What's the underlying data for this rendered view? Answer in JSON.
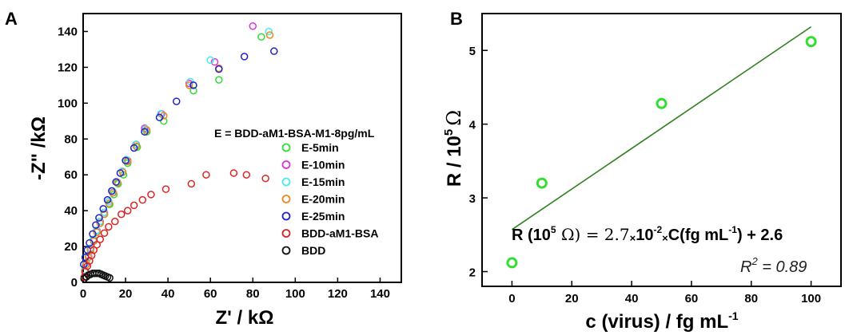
{
  "chart_data": [
    {
      "panel": "A",
      "type": "scatter",
      "xlabel": "Z' / kΩ",
      "ylabel": "-Z\" /kΩ",
      "xlim": [
        0,
        150
      ],
      "ylim": [
        0,
        150
      ],
      "xticks": [
        0,
        20,
        40,
        60,
        80,
        100,
        120,
        140
      ],
      "yticks": [
        0,
        20,
        40,
        60,
        80,
        100,
        120,
        140
      ],
      "legend_title": "E = BDD-aM1-BSA-M1-8pg/mL",
      "legend_position": "right-middle",
      "marker": "open-circle",
      "series": [
        {
          "name": "E-5min",
          "color": "#33dd33",
          "x": [
            0.8,
            1.5,
            2.5,
            3.5,
            5,
            6.5,
            8,
            10,
            12.5,
            14.5,
            16.5,
            19,
            21,
            25.5,
            30,
            38,
            52,
            64,
            84
          ],
          "y": [
            6,
            10,
            14,
            18,
            23,
            28,
            33,
            38,
            43.5,
            49,
            55,
            60,
            66.5,
            75.5,
            84,
            90,
            107,
            113,
            137
          ]
        },
        {
          "name": "E-10min",
          "color": "#dd33dd",
          "x": [
            0.8,
            1.5,
            2.5,
            3.5,
            5,
            6.5,
            8,
            10,
            12,
            14,
            16,
            18.5,
            21,
            25,
            29,
            37,
            50,
            62,
            80
          ],
          "y": [
            7,
            11,
            15,
            19,
            24,
            29,
            34,
            39,
            45,
            50,
            56,
            62,
            68,
            77,
            86,
            94,
            111,
            123,
            143
          ]
        },
        {
          "name": "E-15min",
          "color": "#44eeee",
          "x": [
            0.7,
            1.4,
            2.3,
            3.3,
            4.8,
            6.3,
            7.8,
            9.8,
            12,
            13.8,
            15.8,
            18.5,
            20.5,
            24.8,
            29.5,
            36.5,
            50.5,
            60,
            87.5
          ],
          "y": [
            7,
            11,
            15,
            19,
            24,
            29,
            34,
            39,
            45,
            51,
            56,
            62,
            68.5,
            77,
            85.5,
            94,
            112,
            124,
            140
          ]
        },
        {
          "name": "E-20min",
          "color": "#ee8822",
          "x": [
            0.8,
            1.5,
            2.5,
            3.5,
            5,
            6.5,
            8,
            10,
            12.2,
            14.2,
            16.2,
            18.7,
            21,
            25,
            30,
            38,
            50,
            64,
            88
          ],
          "y": [
            6,
            10,
            14,
            18,
            23,
            28,
            33,
            38,
            44,
            50,
            55.5,
            61.5,
            67.5,
            76,
            85,
            93,
            110,
            119.5,
            138
          ]
        },
        {
          "name": "E-25min",
          "color": "#2222cc",
          "x": [
            0.3,
            1,
            2,
            3,
            4.5,
            6,
            7.5,
            9.5,
            11.5,
            13.5,
            15.5,
            17.5,
            20,
            24,
            29,
            36,
            44,
            52,
            64,
            76,
            90
          ],
          "y": [
            10,
            14,
            18,
            22,
            27,
            32,
            36,
            41,
            46,
            51,
            56,
            61,
            68,
            75,
            84,
            92,
            101,
            110,
            119,
            126,
            129
          ]
        },
        {
          "name": "BDD-aM1-BSA",
          "color": "#dd2222",
          "x": [
            0.5,
            1,
            2,
            3,
            4,
            5,
            6.5,
            8,
            10,
            12,
            15,
            18,
            21,
            24,
            28,
            32,
            39,
            51,
            58,
            71,
            77,
            86
          ],
          "y": [
            3,
            6,
            9,
            12,
            15,
            18,
            21,
            24,
            27.5,
            31,
            34,
            38,
            40,
            43,
            46,
            49,
            52,
            55,
            60,
            61,
            60,
            58
          ]
        },
        {
          "name": "BDD",
          "color": "#111111",
          "x": [
            0.5,
            1.5,
            2.5,
            3.5,
            4.5,
            5.5,
            6.5,
            7.5,
            8.5,
            9.5,
            10.5,
            11.5,
            12.5
          ],
          "y": [
            2,
            3,
            4,
            4.5,
            5,
            5,
            5,
            5,
            4.5,
            4,
            3.5,
            3,
            2.5
          ]
        }
      ]
    },
    {
      "panel": "B",
      "type": "scatter",
      "xlabel": "c (virus) / fg mL",
      "xlabel_sup": "-1",
      "ylabel": "R / 10",
      "ylabel_sup": "5",
      "ylabel_unit": "Ω",
      "xlim": [
        -10,
        110
      ],
      "ylim": [
        1.8,
        5.5
      ],
      "xticks": [
        0,
        20,
        40,
        60,
        80,
        100
      ],
      "yticks": [
        2,
        3,
        4,
        5
      ],
      "marker": "open-circle",
      "marker_color": "#33dd33",
      "fit_color": "#2f7f1f",
      "series": [
        {
          "x": [
            0,
            10,
            50,
            100
          ],
          "y": [
            2.12,
            3.2,
            4.28,
            5.12
          ]
        }
      ],
      "fit": {
        "x": [
          0,
          100
        ],
        "y": [
          2.57,
          5.32
        ]
      },
      "equation": {
        "lead": "R (10",
        "sup_5": "5",
        "omega_part": " Ω) = 2.7",
        "times": "×",
        "ten": "10",
        "sup_neg2": "-2",
        "conc_part": "C(fg mL",
        "sup_neg1": "-1",
        "tail": ") + 2.6"
      },
      "r2": {
        "r": "R",
        "sup": "2",
        "rest": " = 0.89"
      }
    }
  ]
}
